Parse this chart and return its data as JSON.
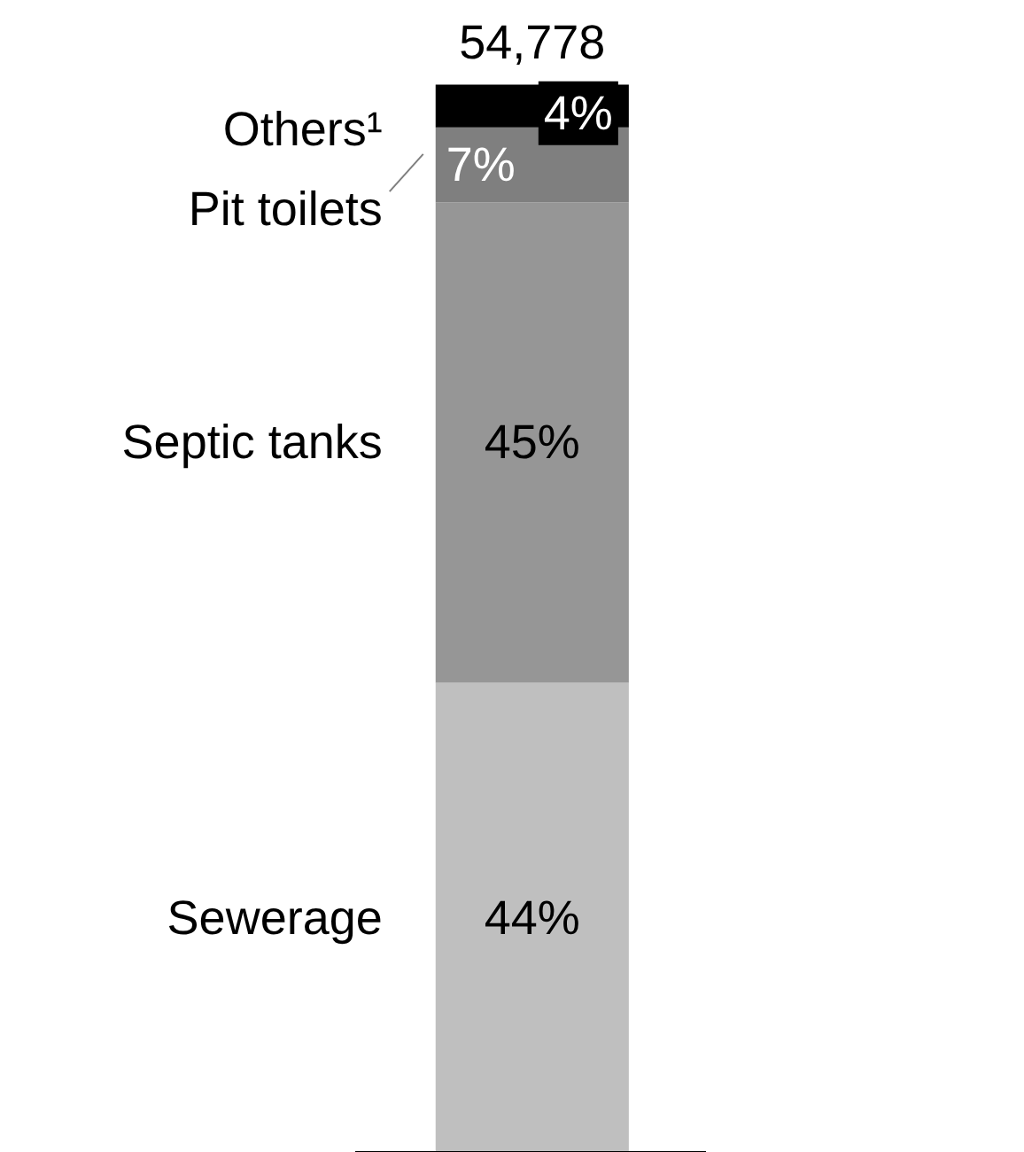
{
  "chart_data": {
    "type": "bar",
    "stacked": true,
    "categories": [
      null
    ],
    "series": [
      {
        "name": "Sewerage",
        "color": "#bfbfbf",
        "values": [
          44
        ],
        "value_labels": [
          "44%"
        ]
      },
      {
        "name": "Septic tanks",
        "color": "#969696",
        "values": [
          45
        ],
        "value_labels": [
          "45%"
        ]
      },
      {
        "name": "Pit toilets",
        "color": "#7f7f7f",
        "values": [
          7
        ],
        "value_labels": [
          "7%"
        ]
      },
      {
        "name": "Others¹",
        "color": "#000000",
        "values": [
          4
        ],
        "value_labels": [
          "4%"
        ]
      }
    ],
    "annotations": [
      "54,778"
    ]
  }
}
